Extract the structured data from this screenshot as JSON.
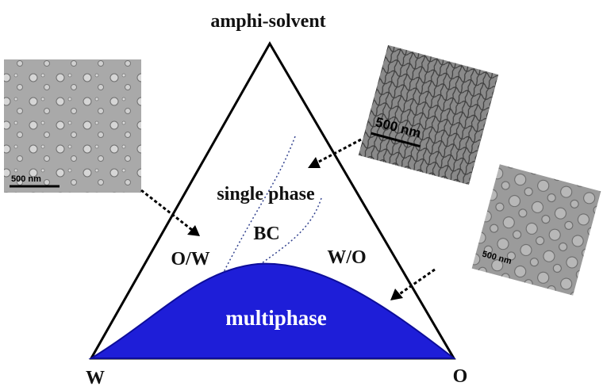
{
  "diagram": {
    "apex_label": "amphi-solvent",
    "left_label": "W",
    "right_label": "O",
    "regions": {
      "single_phase": "single phase",
      "bicontinuous": "BC",
      "oil_in_water": "O/W",
      "water_in_oil": "W/O",
      "multiphase": "multiphase"
    },
    "micrographs": [
      {
        "scale_bar": "500 nm"
      },
      {
        "scale_bar": "500 nm"
      },
      {
        "scale_bar": "500 nm"
      }
    ]
  }
}
